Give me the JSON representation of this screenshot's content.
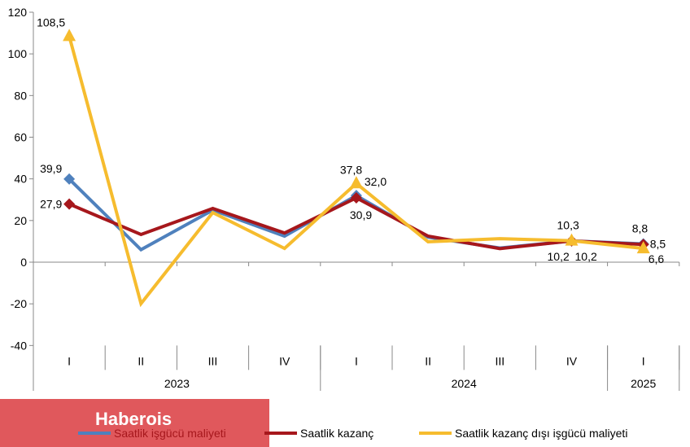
{
  "chart_data": {
    "type": "line",
    "categories": [
      "I",
      "II",
      "III",
      "IV",
      "I",
      "II",
      "III",
      "IV",
      "I"
    ],
    "years": [
      {
        "label": "2023",
        "span": 4
      },
      {
        "label": "2024",
        "span": 4
      },
      {
        "label": "2025",
        "span": 1
      }
    ],
    "ylim": [
      -40,
      120
    ],
    "yticks": [
      -40,
      -20,
      0,
      20,
      40,
      60,
      80,
      100,
      120
    ],
    "grid": false,
    "legend_position": "bottom",
    "series": [
      {
        "name": "Saatlik işgücü maliyeti",
        "color": "#4f81bd",
        "marker": "diamond",
        "values": [
          39.9,
          6.0,
          25.0,
          12.5,
          32.0,
          12.0,
          6.8,
          10.2,
          8.8
        ],
        "labels": [
          "39,9",
          null,
          null,
          null,
          "32,0",
          null,
          null,
          "10,2",
          "8,8"
        ]
      },
      {
        "name": "Saatlik kazanç",
        "color": "#a6171c",
        "marker": "diamond",
        "values": [
          27.9,
          13.3,
          25.8,
          14.0,
          30.9,
          12.5,
          6.5,
          10.2,
          8.5
        ],
        "labels": [
          "27,9",
          null,
          null,
          null,
          "30,9",
          null,
          null,
          "10,2",
          "8,5"
        ]
      },
      {
        "name": "Saatlik kazanç dışı işgücü maliyeti",
        "color": "#f6bc2e",
        "marker": "triangle",
        "values": [
          108.5,
          -19.9,
          23.8,
          6.6,
          37.8,
          9.8,
          11.3,
          10.3,
          6.6
        ],
        "labels": [
          "108,5",
          null,
          null,
          null,
          "37,8",
          null,
          null,
          "10,3",
          "6,6"
        ]
      }
    ]
  },
  "watermark": "Haberois"
}
